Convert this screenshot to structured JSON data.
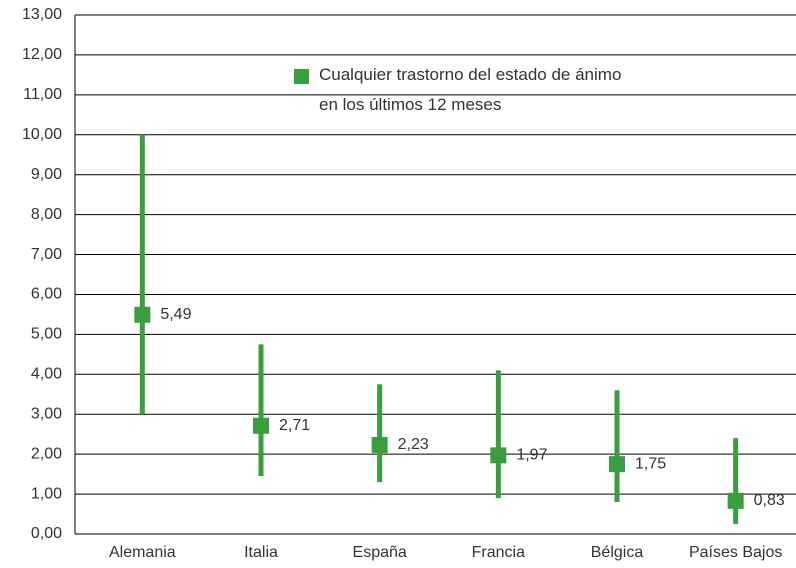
{
  "chart_data": {
    "type": "errorbar",
    "categories": [
      "Alemania",
      "Italia",
      "España",
      "Francia",
      "Bélgica",
      "Países Bajos"
    ],
    "series": [
      {
        "name": "Cualquier trastorno del estado de ánimo\nen los últimos 12 meses",
        "color": "#3a9e3f",
        "values": [
          5.49,
          2.71,
          2.23,
          1.97,
          1.75,
          0.83
        ],
        "value_labels": [
          "5,49",
          "2,71",
          "2,23",
          "1,97",
          "1,75",
          "0,83"
        ],
        "low": [
          3.0,
          1.45,
          1.3,
          0.9,
          0.8,
          0.25
        ],
        "high": [
          10.0,
          4.75,
          3.75,
          4.1,
          3.6,
          2.4
        ]
      }
    ],
    "ylim": [
      0,
      13
    ],
    "yticks": [
      {
        "value": 0,
        "label": "0,00"
      },
      {
        "value": 1,
        "label": "1,00"
      },
      {
        "value": 2,
        "label": "2,00"
      },
      {
        "value": 3,
        "label": "3,00"
      },
      {
        "value": 4,
        "label": "4,00"
      },
      {
        "value": 5,
        "label": "5,00"
      },
      {
        "value": 6,
        "label": "6,00"
      },
      {
        "value": 7,
        "label": "7,00"
      },
      {
        "value": 8,
        "label": "8,00"
      },
      {
        "value": 9,
        "label": "9,00"
      },
      {
        "value": 10,
        "label": "10,00"
      },
      {
        "value": 11,
        "label": "11,00"
      },
      {
        "value": 12,
        "label": "12,00"
      },
      {
        "value": 13,
        "label": "13,00"
      }
    ],
    "grid": true
  }
}
